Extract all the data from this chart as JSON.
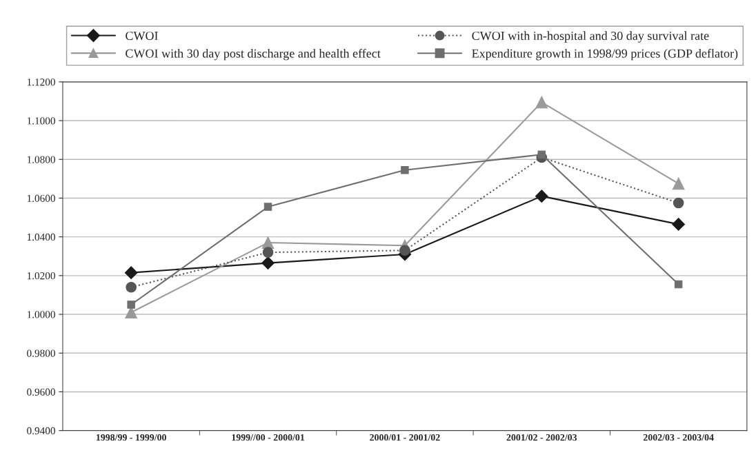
{
  "chart_data": {
    "type": "line",
    "categories": [
      "1998/99 - 1999/00",
      "1999//00 - 2000/01",
      "2000/01 - 2001/02",
      "2001/02 - 2002/03",
      "2002/03 - 2003/04"
    ],
    "series": [
      {
        "name": "CWOI",
        "color": "#1a1a1a",
        "marker": "diamond",
        "line_style": "solid",
        "values": [
          1.0215,
          1.0265,
          1.031,
          1.061,
          1.0465
        ]
      },
      {
        "name": "CWOI with 30 day post discharge and health effect",
        "color": "#9a9a9a",
        "marker": "triangle",
        "line_style": "solid",
        "values": [
          1.001,
          1.037,
          1.0355,
          1.1095,
          1.0675
        ]
      },
      {
        "name": "CWOI with in-hospital and 30 day survival rate",
        "color": "#555555",
        "marker": "circle",
        "line_style": "dotted",
        "values": [
          1.014,
          1.032,
          1.033,
          1.081,
          1.0575
        ]
      },
      {
        "name": "Expenditure growth in 1998/99 prices (GDP deflator)",
        "color": "#6e6e6e",
        "marker": "square",
        "line_style": "solid",
        "values": [
          1.005,
          1.0555,
          1.0745,
          1.0825,
          1.0155
        ]
      }
    ],
    "ylim": [
      0.94,
      1.12
    ],
    "yticks": [
      {
        "value": 0.94,
        "label": "0.9400"
      },
      {
        "value": 0.96,
        "label": "0.9600"
      },
      {
        "value": 0.98,
        "label": "0.9800"
      },
      {
        "value": 1.0,
        "label": "1.0000"
      },
      {
        "value": 1.02,
        "label": "1.0200"
      },
      {
        "value": 1.04,
        "label": "1.0400"
      },
      {
        "value": 1.06,
        "label": "1.0600"
      },
      {
        "value": 1.08,
        "label": "1.0800"
      },
      {
        "value": 1.1,
        "label": "1.1000"
      },
      {
        "value": 1.12,
        "label": "1.1200"
      }
    ],
    "grid": "y",
    "legend": "top"
  }
}
